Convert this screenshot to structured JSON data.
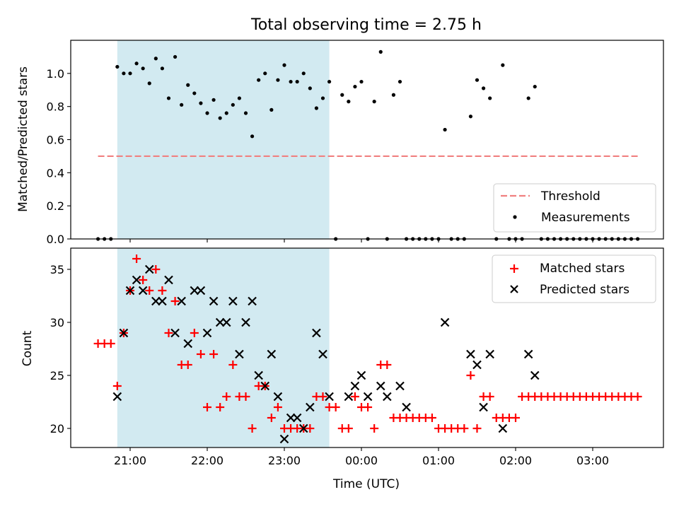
{
  "chart_data": {
    "type": "scatter",
    "title": "Total observing time = 2.75 h",
    "xlabel": "Time (UTC)",
    "x_ticks": [
      "21:00",
      "22:00",
      "23:00",
      "00:00",
      "01:00",
      "02:00",
      "03:00"
    ],
    "shaded_span": {
      "start": "20:50",
      "end": "23:35",
      "color": "#add8e6"
    },
    "panels": [
      {
        "ylabel": "Matched/Predicted stars",
        "ylim": [
          0,
          1.2
        ],
        "yticks": [
          "0.0",
          "0.2",
          "0.4",
          "0.6",
          "0.8",
          "1.0"
        ],
        "legend": {
          "position": "lower right",
          "entries": [
            "Threshold",
            "Measurements"
          ]
        },
        "threshold": {
          "name": "Threshold",
          "value": 0.5,
          "x_start": "20:35",
          "x_end": "03:35",
          "color": "#f08080"
        },
        "measurements": {
          "name": "Measurements",
          "color": "#000000",
          "points": [
            [
              "20:35",
              0.0
            ],
            [
              "20:40",
              0.0
            ],
            [
              "20:45",
              0.0
            ],
            [
              "20:50",
              1.04
            ],
            [
              "20:55",
              1.0
            ],
            [
              "21:00",
              1.0
            ],
            [
              "21:05",
              1.06
            ],
            [
              "21:10",
              1.03
            ],
            [
              "21:15",
              0.94
            ],
            [
              "21:20",
              1.09
            ],
            [
              "21:25",
              1.03
            ],
            [
              "21:30",
              0.85
            ],
            [
              "21:35",
              1.1
            ],
            [
              "21:40",
              0.81
            ],
            [
              "21:45",
              0.93
            ],
            [
              "21:50",
              0.88
            ],
            [
              "21:55",
              0.82
            ],
            [
              "22:00",
              0.76
            ],
            [
              "22:05",
              0.84
            ],
            [
              "22:10",
              0.73
            ],
            [
              "22:15",
              0.76
            ],
            [
              "22:20",
              0.81
            ],
            [
              "22:25",
              0.85
            ],
            [
              "22:30",
              0.76
            ],
            [
              "22:35",
              0.62
            ],
            [
              "22:40",
              0.96
            ],
            [
              "22:45",
              1.0
            ],
            [
              "22:50",
              0.78
            ],
            [
              "22:55",
              0.96
            ],
            [
              "23:00",
              1.05
            ],
            [
              "23:05",
              0.95
            ],
            [
              "23:10",
              0.95
            ],
            [
              "23:15",
              1.0
            ],
            [
              "23:20",
              0.91
            ],
            [
              "23:25",
              0.79
            ],
            [
              "23:30",
              0.85
            ],
            [
              "23:35",
              0.95
            ],
            [
              "23:40",
              0.0
            ],
            [
              "23:45",
              0.87
            ],
            [
              "23:50",
              0.83
            ],
            [
              "23:55",
              0.92
            ],
            [
              "00:00",
              0.95
            ],
            [
              "00:05",
              0.0
            ],
            [
              "00:10",
              0.83
            ],
            [
              "00:15",
              1.13
            ],
            [
              "00:20",
              0.0
            ],
            [
              "00:25",
              0.87
            ],
            [
              "00:30",
              0.95
            ],
            [
              "00:35",
              0.0
            ],
            [
              "00:40",
              0.0
            ],
            [
              "00:45",
              0.0
            ],
            [
              "00:50",
              0.0
            ],
            [
              "00:55",
              0.0
            ],
            [
              "01:00",
              0.0
            ],
            [
              "01:05",
              0.66
            ],
            [
              "01:10",
              0.0
            ],
            [
              "01:15",
              0.0
            ],
            [
              "01:20",
              0.0
            ],
            [
              "01:25",
              0.74
            ],
            [
              "01:30",
              0.96
            ],
            [
              "01:35",
              0.91
            ],
            [
              "01:40",
              0.85
            ],
            [
              "01:45",
              0.0
            ],
            [
              "01:50",
              1.05
            ],
            [
              "01:55",
              0.0
            ],
            [
              "02:00",
              0.0
            ],
            [
              "02:05",
              0.0
            ],
            [
              "02:10",
              0.85
            ],
            [
              "02:15",
              0.92
            ],
            [
              "02:20",
              0.0
            ],
            [
              "02:25",
              0.0
            ],
            [
              "02:30",
              0.0
            ],
            [
              "02:35",
              0.0
            ],
            [
              "02:40",
              0.0
            ],
            [
              "02:45",
              0.0
            ],
            [
              "02:50",
              0.0
            ],
            [
              "02:55",
              0.0
            ],
            [
              "03:00",
              0.0
            ],
            [
              "03:05",
              0.0
            ],
            [
              "03:10",
              0.0
            ],
            [
              "03:15",
              0.0
            ],
            [
              "03:20",
              0.0
            ],
            [
              "03:25",
              0.0
            ],
            [
              "03:30",
              0.0
            ],
            [
              "03:35",
              0.0
            ]
          ]
        }
      },
      {
        "ylabel": "Count",
        "ylim": [
          18.2,
          37
        ],
        "yticks": [
          "20",
          "25",
          "30",
          "35"
        ],
        "legend": {
          "position": "upper right",
          "entries": [
            "Matched stars",
            "Predicted stars"
          ]
        },
        "matched": {
          "name": "Matched stars",
          "color": "#ff0000",
          "points": [
            [
              "20:35",
              28
            ],
            [
              "20:40",
              28
            ],
            [
              "20:45",
              28
            ],
            [
              "20:50",
              24
            ],
            [
              "20:55",
              29
            ],
            [
              "21:00",
              33
            ],
            [
              "21:05",
              36
            ],
            [
              "21:10",
              34
            ],
            [
              "21:15",
              33
            ],
            [
              "21:20",
              35
            ],
            [
              "21:25",
              33
            ],
            [
              "21:30",
              29
            ],
            [
              "21:35",
              32
            ],
            [
              "21:40",
              26
            ],
            [
              "21:45",
              26
            ],
            [
              "21:50",
              29
            ],
            [
              "21:55",
              27
            ],
            [
              "22:00",
              22
            ],
            [
              "22:05",
              27
            ],
            [
              "22:10",
              22
            ],
            [
              "22:15",
              23
            ],
            [
              "22:20",
              26
            ],
            [
              "22:25",
              23
            ],
            [
              "22:30",
              23
            ],
            [
              "22:35",
              20
            ],
            [
              "22:40",
              24
            ],
            [
              "22:45",
              24
            ],
            [
              "22:50",
              21
            ],
            [
              "22:55",
              22
            ],
            [
              "23:00",
              20
            ],
            [
              "23:05",
              20
            ],
            [
              "23:10",
              20
            ],
            [
              "23:15",
              20
            ],
            [
              "23:20",
              20
            ],
            [
              "23:25",
              23
            ],
            [
              "23:30",
              23
            ],
            [
              "23:35",
              22
            ],
            [
              "23:40",
              22
            ],
            [
              "23:45",
              20
            ],
            [
              "23:50",
              20
            ],
            [
              "23:55",
              23
            ],
            [
              "00:00",
              22
            ],
            [
              "00:05",
              22
            ],
            [
              "00:10",
              20
            ],
            [
              "00:15",
              26
            ],
            [
              "00:20",
              26
            ],
            [
              "00:25",
              21
            ],
            [
              "00:30",
              21
            ],
            [
              "00:35",
              21
            ],
            [
              "00:40",
              21
            ],
            [
              "00:45",
              21
            ],
            [
              "00:50",
              21
            ],
            [
              "00:55",
              21
            ],
            [
              "01:00",
              20
            ],
            [
              "01:05",
              20
            ],
            [
              "01:10",
              20
            ],
            [
              "01:15",
              20
            ],
            [
              "01:20",
              20
            ],
            [
              "01:25",
              25
            ],
            [
              "01:30",
              20
            ],
            [
              "01:35",
              23
            ],
            [
              "01:40",
              23
            ],
            [
              "01:45",
              21
            ],
            [
              "01:50",
              21
            ],
            [
              "01:55",
              21
            ],
            [
              "02:00",
              21
            ],
            [
              "02:05",
              23
            ],
            [
              "02:10",
              23
            ],
            [
              "02:15",
              23
            ],
            [
              "02:20",
              23
            ],
            [
              "02:25",
              23
            ],
            [
              "02:30",
              23
            ],
            [
              "02:35",
              23
            ],
            [
              "02:40",
              23
            ],
            [
              "02:45",
              23
            ],
            [
              "02:50",
              23
            ],
            [
              "02:55",
              23
            ],
            [
              "03:00",
              23
            ],
            [
              "03:05",
              23
            ],
            [
              "03:10",
              23
            ],
            [
              "03:15",
              23
            ],
            [
              "03:20",
              23
            ],
            [
              "03:25",
              23
            ],
            [
              "03:30",
              23
            ],
            [
              "03:35",
              23
            ]
          ]
        },
        "predicted": {
          "name": "Predicted stars",
          "color": "#000000",
          "points": [
            [
              "20:50",
              23
            ],
            [
              "20:55",
              29
            ],
            [
              "21:00",
              33
            ],
            [
              "21:05",
              34
            ],
            [
              "21:10",
              33
            ],
            [
              "21:15",
              35
            ],
            [
              "21:20",
              32
            ],
            [
              "21:25",
              32
            ],
            [
              "21:30",
              34
            ],
            [
              "21:35",
              29
            ],
            [
              "21:40",
              32
            ],
            [
              "21:45",
              28
            ],
            [
              "21:50",
              33
            ],
            [
              "21:55",
              33
            ],
            [
              "22:00",
              29
            ],
            [
              "22:05",
              32
            ],
            [
              "22:10",
              30
            ],
            [
              "22:15",
              30
            ],
            [
              "22:20",
              32
            ],
            [
              "22:25",
              27
            ],
            [
              "22:30",
              30
            ],
            [
              "22:35",
              32
            ],
            [
              "22:40",
              25
            ],
            [
              "22:45",
              24
            ],
            [
              "22:50",
              27
            ],
            [
              "22:55",
              23
            ],
            [
              "23:00",
              19
            ],
            [
              "23:05",
              21
            ],
            [
              "23:10",
              21
            ],
            [
              "23:15",
              20
            ],
            [
              "23:20",
              22
            ],
            [
              "23:25",
              29
            ],
            [
              "23:30",
              27
            ],
            [
              "23:35",
              23
            ],
            [
              "23:50",
              23
            ],
            [
              "23:55",
              24
            ],
            [
              "00:00",
              25
            ],
            [
              "00:05",
              23
            ],
            [
              "00:15",
              24
            ],
            [
              "00:20",
              23
            ],
            [
              "00:30",
              24
            ],
            [
              "00:35",
              22
            ],
            [
              "01:05",
              30
            ],
            [
              "01:25",
              27
            ],
            [
              "01:30",
              26
            ],
            [
              "01:35",
              22
            ],
            [
              "01:40",
              27
            ],
            [
              "01:50",
              20
            ],
            [
              "02:10",
              27
            ],
            [
              "02:15",
              25
            ]
          ]
        }
      }
    ]
  }
}
